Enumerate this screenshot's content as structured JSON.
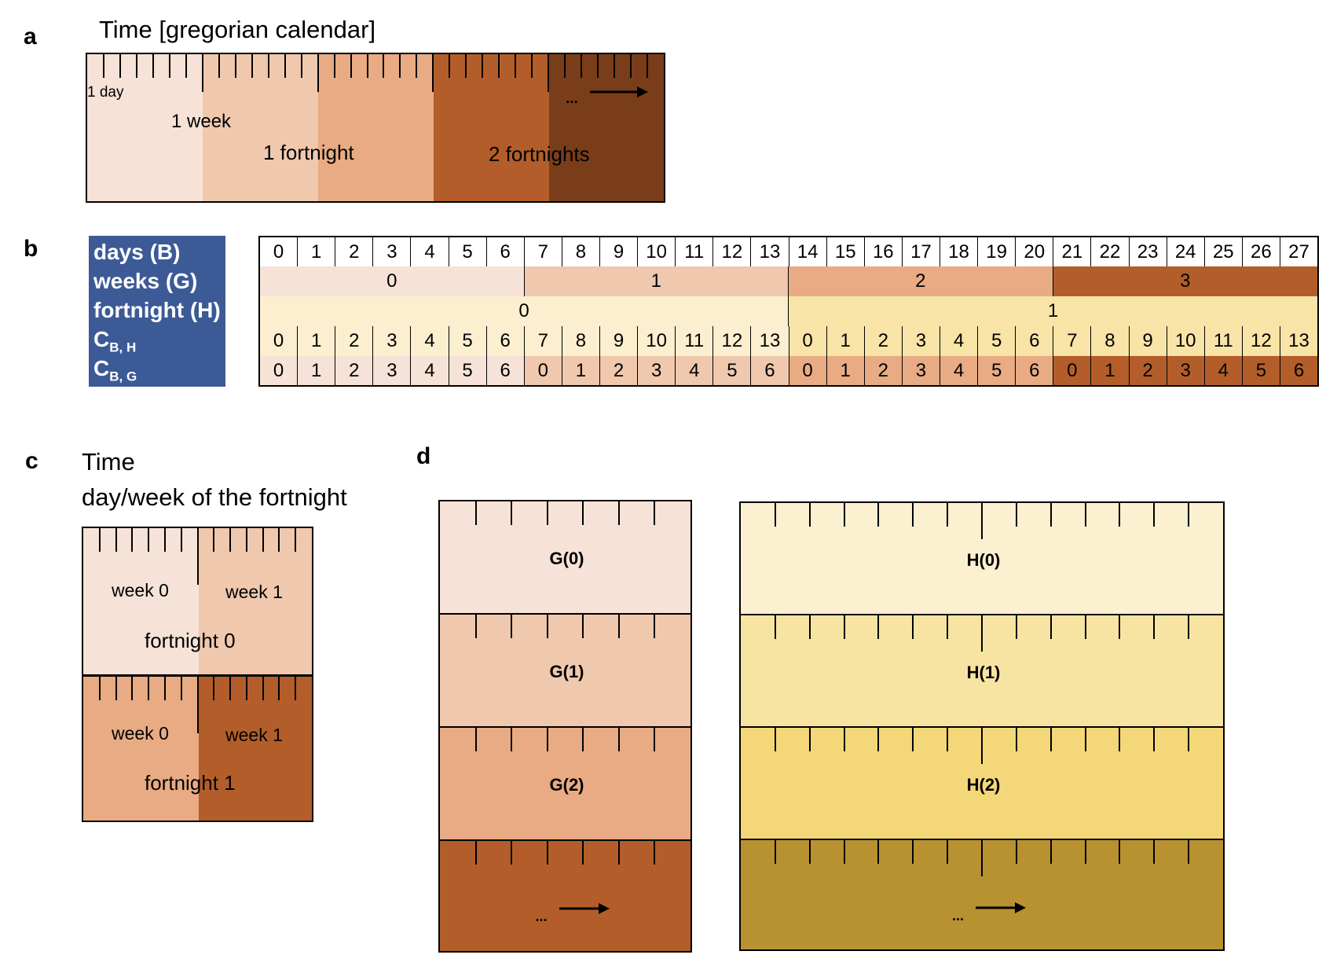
{
  "panel_a": {
    "label": "a",
    "title": "Time [gregorian calendar]",
    "labels": {
      "day": "1 day",
      "week": "1 week",
      "fortnight": "1 fortnight",
      "two_fortnights": "2 fortnights",
      "ellipsis": "..."
    },
    "colors": [
      "#f6e2d6",
      "#efc8ae",
      "#e8ab84",
      "#b35e2a",
      "#7a3d1a"
    ]
  },
  "panel_b": {
    "label": "b",
    "legend": {
      "days": "days (B)",
      "weeks": "weeks (G)",
      "fortnight": "fortnight (H)",
      "c": "C",
      "sub_bh": "B, H",
      "sub_bg": "B, G"
    },
    "days": [
      0,
      1,
      2,
      3,
      4,
      5,
      6,
      7,
      8,
      9,
      10,
      11,
      12,
      13,
      14,
      15,
      16,
      17,
      18,
      19,
      20,
      21,
      22,
      23,
      24,
      25,
      26,
      27
    ],
    "weeks": [
      0,
      1,
      2,
      3
    ],
    "fortnights": [
      0,
      1
    ],
    "c_bh": [
      0,
      1,
      2,
      3,
      4,
      5,
      6,
      7,
      8,
      9,
      10,
      11,
      12,
      13,
      0,
      1,
      2,
      3,
      4,
      5,
      6,
      7,
      8,
      9,
      10,
      11,
      12,
      13
    ],
    "c_bg": [
      0,
      1,
      2,
      3,
      4,
      5,
      6,
      0,
      1,
      2,
      3,
      4,
      5,
      6,
      0,
      1,
      2,
      3,
      4,
      5,
      6,
      0,
      1,
      2,
      3,
      4,
      5,
      6
    ],
    "week_colors": [
      "#f6e2d6",
      "#efc8ae",
      "#e8ab84",
      "#b35e2a"
    ],
    "fortnight_colors": [
      "#fbefd0",
      "#f8e4a6"
    ],
    "legend_color": "#3c5a96"
  },
  "panel_c": {
    "label": "c",
    "title_line1": "Time",
    "title_line2": "day/week of the fortnight",
    "week0": "week 0",
    "week1": "week 1",
    "fortnight0": "fortnight 0",
    "fortnight1": "fortnight 1"
  },
  "panel_d": {
    "label": "d",
    "g_labels": [
      "G(0)",
      "G(1)",
      "G(2)",
      "..."
    ],
    "h_labels": [
      "H(0)",
      "H(1)",
      "H(2)",
      "..."
    ],
    "g_colors": [
      "#f6e2d6",
      "#efc8ae",
      "#e8ab84",
      "#b35e2a"
    ],
    "h_colors": [
      "#fbf0cf",
      "#f8e4a2",
      "#f4d778",
      "#b89230"
    ]
  }
}
